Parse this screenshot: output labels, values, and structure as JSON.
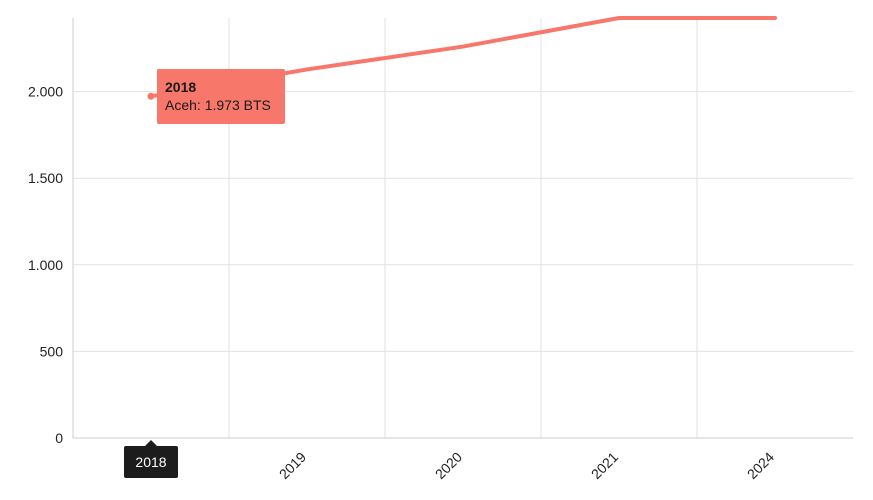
{
  "chart_data": {
    "type": "line",
    "categories": [
      "2018",
      "2019",
      "2020",
      "2021",
      "2024"
    ],
    "series": [
      {
        "name": "Aceh",
        "values": [
          1973,
          2128,
          2260,
          2425,
          2425
        ],
        "color": "#f8776b"
      }
    ],
    "ylim": [
      0,
      2425
    ],
    "yticks": [
      0,
      500,
      1000,
      1500,
      2000
    ],
    "ytick_labels": [
      "0",
      "500",
      "1.000",
      "1.500",
      "2.000"
    ],
    "grid": true,
    "tooltip": {
      "title": "2018",
      "text": "Aceh: 1.973 BTS"
    },
    "axis_pointer_label": "2018"
  }
}
